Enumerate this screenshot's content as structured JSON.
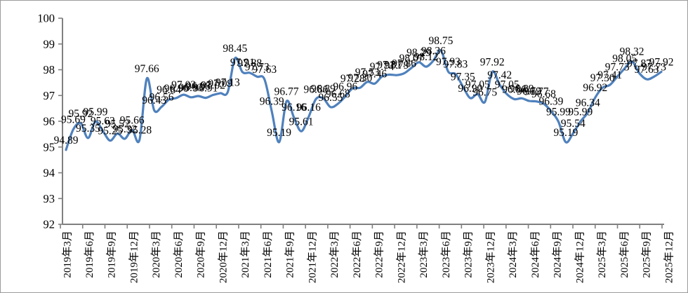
{
  "chart_data": {
    "type": "line",
    "title": "",
    "xlabel": "",
    "ylabel": "",
    "grid": "off",
    "legend_position": "none",
    "ylim": [
      92,
      100
    ],
    "y_ticks": [
      100,
      99,
      98,
      97,
      96,
      95,
      94,
      93,
      92
    ],
    "x_tick_labels": [
      "2019年3月",
      "2019年6月",
      "2019年9月",
      "2019年12月",
      "2020年3月",
      "2020年6月",
      "2020年9月",
      "2020年12月",
      "2021年3月",
      "2021年6月",
      "2021年9月",
      "2021年12月",
      "2022年3月",
      "2022年6月",
      "2022年9月",
      "2022年12月",
      "2023年3月",
      "2023年6月",
      "2023年9月",
      "2023年12月",
      "2024年3月",
      "2024年6月",
      "2024年9月",
      "2024年12月",
      "2025年3月",
      "2025年6月",
      "2025年9月",
      "2025年12月"
    ],
    "x_is_monthly_from": "2019年3月",
    "values": [
      94.89,
      95.69,
      95.92,
      95.35,
      95.99,
      95.63,
      95.25,
      95.52,
      95.32,
      95.66,
      95.28,
      97.66,
      96.43,
      96.56,
      96.84,
      96.9,
      97.03,
      96.93,
      96.98,
      96.91,
      97.02,
      97.09,
      97.13,
      98.45,
      97.91,
      97.88,
      97.73,
      97.63,
      96.39,
      95.19,
      96.77,
      96.16,
      95.61,
      96.16,
      96.86,
      96.89,
      96.55,
      96.68,
      96.96,
      97.28,
      97.3,
      97.53,
      97.46,
      97.74,
      97.81,
      97.79,
      97.86,
      98.07,
      98.29,
      98.12,
      98.36,
      98.75,
      97.93,
      97.83,
      97.35,
      96.9,
      97.05,
      96.75,
      97.92,
      97.42,
      97.05,
      96.86,
      96.89,
      96.79,
      96.77,
      96.68,
      96.39,
      95.99,
      95.19,
      95.54,
      95.99,
      96.34,
      96.92,
      97.3,
      97.41,
      97.73,
      98.05,
      98.32,
      97.87,
      97.63,
      97.73,
      97.92
    ],
    "data_labels_visible": true,
    "data_label_decimals": 2
  },
  "colors": {
    "line": "#4F81BD",
    "axis": "#808080",
    "text": "#000000",
    "background": "#ffffff"
  }
}
